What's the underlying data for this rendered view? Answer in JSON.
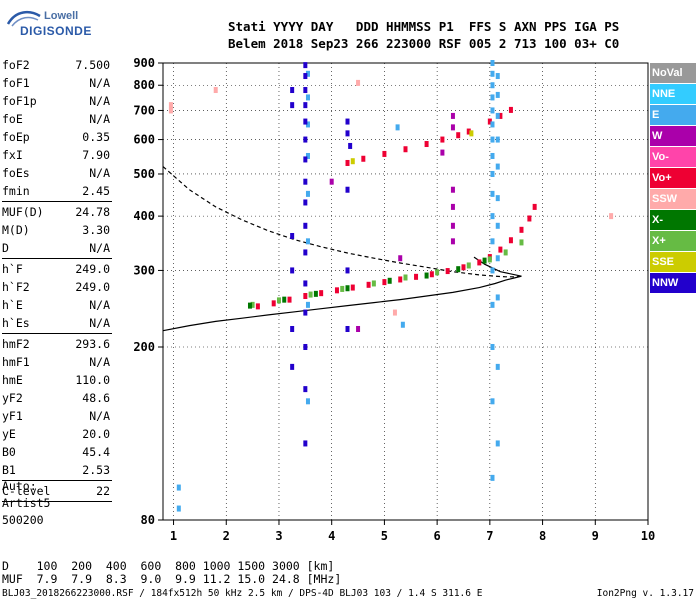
{
  "logo": {
    "line1": "Lowell",
    "line2": "DIGISONDE"
  },
  "header": {
    "line1": "Stati YYYY DAY   DDD HHMMSS P1  FFS S AXN PPS IGA PS",
    "line2": "Belem 2018 Sep23 266 223000 RSF 005 2 713 100 03+ C0"
  },
  "params": [
    {
      "k": "foF2",
      "v": "7.500"
    },
    {
      "k": "foF1",
      "v": "N/A"
    },
    {
      "k": "foF1p",
      "v": "N/A"
    },
    {
      "k": "foE",
      "v": "N/A"
    },
    {
      "k": "foEp",
      "v": "0.35"
    },
    {
      "k": "fxI",
      "v": "7.90"
    },
    {
      "k": "foEs",
      "v": "N/A"
    },
    {
      "k": "fmin",
      "v": "2.45"
    },
    {
      "sep": true
    },
    {
      "k": "MUF(D)",
      "v": "24.78"
    },
    {
      "k": "M(D)",
      "v": "3.30"
    },
    {
      "k": "D",
      "v": "N/A"
    },
    {
      "sep": true
    },
    {
      "k": "h`F",
      "v": "249.0"
    },
    {
      "k": "h`F2",
      "v": "249.0"
    },
    {
      "k": "h`E",
      "v": "N/A"
    },
    {
      "k": "h`Es",
      "v": "N/A"
    },
    {
      "sep": true
    },
    {
      "k": "hmF2",
      "v": "293.6"
    },
    {
      "k": "hmF1",
      "v": "N/A"
    },
    {
      "k": "hmE",
      "v": "110.0"
    },
    {
      "k": "yF2",
      "v": "48.6"
    },
    {
      "k": "yF1",
      "v": "N/A"
    },
    {
      "k": "yE",
      "v": "20.0"
    },
    {
      "k": "B0",
      "v": "45.4"
    },
    {
      "k": "B1",
      "v": "2.53"
    },
    {
      "sep": true
    },
    {
      "k": "C-level",
      "v": "22"
    },
    {
      "sep": true
    }
  ],
  "auto": {
    "line1": "Auto:",
    "line2": "Artist5",
    "line3": "500200"
  },
  "muf_table": {
    "row1": "D    100  200  400  600  800 1000 1500 3000 [km]",
    "row2": "MUF  7.9  7.9  8.3  9.0  9.9 11.2 15.0 24.8 [MHz]"
  },
  "footer": "BLJ03_2018266223000.RSF / 184fx512h 50 kHz 2.5 km / DPS-4D BLJ03 103 / 1.4 S 311.6 E",
  "version": "Ion2Png v. 1.3.17",
  "legend": [
    {
      "label": "NoVal",
      "color": "#999999"
    },
    {
      "label": "NNE",
      "color": "#33ccff"
    },
    {
      "label": "E",
      "color": "#44aaee"
    },
    {
      "label": "W",
      "color": "#aa00aa"
    },
    {
      "label": "Vo-",
      "color": "#ff44aa"
    },
    {
      "label": "Vo+",
      "color": "#ee0033"
    },
    {
      "label": "SSW",
      "color": "#ffaaaa"
    },
    {
      "label": "X-",
      "color": "#007700"
    },
    {
      "label": "X+",
      "color": "#66bb44"
    },
    {
      "label": "SSE",
      "color": "#cccc00"
    },
    {
      "label": "NNW",
      "color": "#2200cc"
    }
  ],
  "chart_data": {
    "type": "scatter",
    "xlim": [
      0.8,
      10
    ],
    "ylim": [
      80,
      900
    ],
    "y_scale": "log",
    "x_ticks": [
      1,
      2,
      3,
      4,
      5,
      6,
      7,
      8,
      9,
      10
    ],
    "y_ticks": [
      80,
      200,
      300,
      400,
      500,
      600,
      700,
      800,
      900
    ],
    "grid": true,
    "series": [
      {
        "name": "Vo+",
        "color": "#ee0033",
        "points": [
          [
            2.6,
            248
          ],
          [
            2.9,
            252
          ],
          [
            3.2,
            257
          ],
          [
            3.5,
            262
          ],
          [
            3.8,
            266
          ],
          [
            4.1,
            270
          ],
          [
            4.4,
            274
          ],
          [
            4.7,
            278
          ],
          [
            5.0,
            282
          ],
          [
            5.3,
            286
          ],
          [
            5.6,
            290
          ],
          [
            5.9,
            294
          ],
          [
            6.2,
            299
          ],
          [
            6.5,
            305
          ],
          [
            6.8,
            313
          ],
          [
            7.0,
            322
          ],
          [
            7.2,
            335
          ],
          [
            7.4,
            352
          ],
          [
            7.6,
            372
          ],
          [
            7.75,
            395
          ],
          [
            7.85,
            420
          ]
        ]
      },
      {
        "name": "X+",
        "color": "#66bb44",
        "points": [
          [
            2.5,
            250
          ],
          [
            3.0,
            256
          ],
          [
            3.6,
            264
          ],
          [
            4.2,
            272
          ],
          [
            4.8,
            280
          ],
          [
            5.4,
            289
          ],
          [
            6.0,
            297
          ],
          [
            6.6,
            308
          ],
          [
            7.0,
            318
          ],
          [
            7.3,
            330
          ],
          [
            7.6,
            348
          ]
        ]
      },
      {
        "name": "X-",
        "color": "#007700",
        "points": [
          [
            2.45,
            249
          ],
          [
            3.1,
            257
          ],
          [
            3.7,
            265
          ],
          [
            4.3,
            273
          ],
          [
            5.1,
            284
          ],
          [
            5.8,
            292
          ],
          [
            6.4,
            302
          ],
          [
            6.9,
            316
          ]
        ]
      },
      {
        "name": "Vo+",
        "color": "#ee0033",
        "points": [
          [
            4.3,
            530
          ],
          [
            4.6,
            542
          ],
          [
            5.0,
            556
          ],
          [
            5.4,
            570
          ],
          [
            5.8,
            586
          ],
          [
            6.1,
            600
          ],
          [
            6.4,
            614
          ],
          [
            6.6,
            626
          ],
          [
            7.0,
            660
          ],
          [
            7.2,
            680
          ],
          [
            7.4,
            702
          ]
        ]
      },
      {
        "name": "E",
        "color": "#44aaee",
        "points": [
          [
            7.05,
            100
          ],
          [
            7.05,
            150
          ],
          [
            7.05,
            200
          ],
          [
            7.05,
            250
          ],
          [
            7.05,
            300
          ],
          [
            7.05,
            350
          ],
          [
            7.05,
            400
          ],
          [
            7.05,
            450
          ],
          [
            7.05,
            500
          ],
          [
            7.05,
            550
          ],
          [
            7.05,
            600
          ],
          [
            7.05,
            650
          ],
          [
            7.05,
            700
          ],
          [
            7.05,
            750
          ],
          [
            7.05,
            800
          ],
          [
            7.05,
            850
          ],
          [
            7.05,
            900
          ],
          [
            7.15,
            120
          ],
          [
            7.15,
            180
          ],
          [
            7.15,
            260
          ],
          [
            7.15,
            320
          ],
          [
            7.15,
            380
          ],
          [
            7.15,
            440
          ],
          [
            7.15,
            520
          ],
          [
            7.15,
            600
          ],
          [
            7.15,
            680
          ],
          [
            7.15,
            760
          ],
          [
            7.15,
            840
          ],
          [
            3.55,
            150
          ],
          [
            3.55,
            250
          ],
          [
            3.55,
            350
          ],
          [
            3.55,
            450
          ],
          [
            3.55,
            550
          ],
          [
            3.55,
            650
          ],
          [
            3.55,
            750
          ],
          [
            3.55,
            850
          ],
          [
            1.1,
            85
          ],
          [
            1.1,
            95
          ],
          [
            5.35,
            225
          ],
          [
            5.25,
            640
          ]
        ]
      },
      {
        "name": "NNW",
        "color": "#2200cc",
        "points": [
          [
            3.5,
            120
          ],
          [
            3.5,
            160
          ],
          [
            3.5,
            200
          ],
          [
            3.5,
            240
          ],
          [
            3.5,
            280
          ],
          [
            3.5,
            330
          ],
          [
            3.5,
            380
          ],
          [
            3.5,
            430
          ],
          [
            3.5,
            480
          ],
          [
            3.5,
            540
          ],
          [
            3.5,
            600
          ],
          [
            3.5,
            660
          ],
          [
            3.5,
            720
          ],
          [
            3.5,
            780
          ],
          [
            3.5,
            840
          ],
          [
            3.5,
            890
          ],
          [
            3.25,
            180
          ],
          [
            3.25,
            220
          ],
          [
            3.25,
            300
          ],
          [
            3.25,
            360
          ],
          [
            3.25,
            720
          ],
          [
            3.25,
            780
          ],
          [
            4.3,
            220
          ],
          [
            4.3,
            300
          ],
          [
            4.3,
            460
          ],
          [
            4.3,
            620
          ],
          [
            4.3,
            660
          ],
          [
            4.35,
            580
          ]
        ]
      },
      {
        "name": "W",
        "color": "#aa00aa",
        "points": [
          [
            6.3,
            350
          ],
          [
            6.3,
            380
          ],
          [
            6.3,
            420
          ],
          [
            6.3,
            460
          ],
          [
            6.3,
            640
          ],
          [
            6.3,
            680
          ],
          [
            4.5,
            220
          ],
          [
            5.3,
            320
          ],
          [
            4.0,
            480
          ],
          [
            6.1,
            560
          ]
        ]
      },
      {
        "name": "SSW",
        "color": "#ffaaaa",
        "points": [
          [
            0.95,
            700
          ],
          [
            0.95,
            720
          ],
          [
            4.5,
            810
          ],
          [
            5.2,
            240
          ],
          [
            9.3,
            400
          ],
          [
            1.8,
            780
          ]
        ]
      },
      {
        "name": "SSE",
        "color": "#cccc00",
        "points": [
          [
            4.4,
            535
          ],
          [
            6.65,
            620
          ]
        ]
      }
    ],
    "lines": [
      {
        "style": "dashed",
        "color": "#000000",
        "points": [
          [
            0.8,
            520
          ],
          [
            1.3,
            460
          ],
          [
            1.8,
            420
          ],
          [
            2.3,
            392
          ],
          [
            2.8,
            370
          ],
          [
            3.3,
            353
          ],
          [
            3.8,
            340
          ],
          [
            4.3,
            329
          ],
          [
            4.8,
            320
          ],
          [
            5.3,
            312
          ],
          [
            5.8,
            305
          ],
          [
            6.3,
            298
          ],
          [
            6.8,
            293
          ],
          [
            7.1,
            291
          ],
          [
            7.3,
            290
          ],
          [
            7.5,
            290
          ],
          [
            7.6,
            291
          ]
        ]
      },
      {
        "style": "solid",
        "color": "#000000",
        "points": [
          [
            0.8,
            218
          ],
          [
            1.3,
            224
          ],
          [
            1.8,
            229
          ],
          [
            2.3,
            233
          ],
          [
            2.8,
            237
          ],
          [
            3.3,
            241
          ],
          [
            3.8,
            245
          ],
          [
            4.3,
            249
          ],
          [
            4.8,
            253
          ],
          [
            5.3,
            257
          ],
          [
            5.8,
            262
          ],
          [
            6.3,
            267
          ],
          [
            6.8,
            274
          ],
          [
            7.1,
            280
          ],
          [
            7.3,
            285
          ],
          [
            7.5,
            289
          ],
          [
            7.6,
            291
          ]
        ]
      },
      {
        "style": "solid",
        "color": "#000000",
        "points": [
          [
            7.6,
            291
          ],
          [
            7.2,
            298
          ],
          [
            6.9,
            310
          ],
          [
            6.7,
            322
          ]
        ]
      }
    ]
  }
}
